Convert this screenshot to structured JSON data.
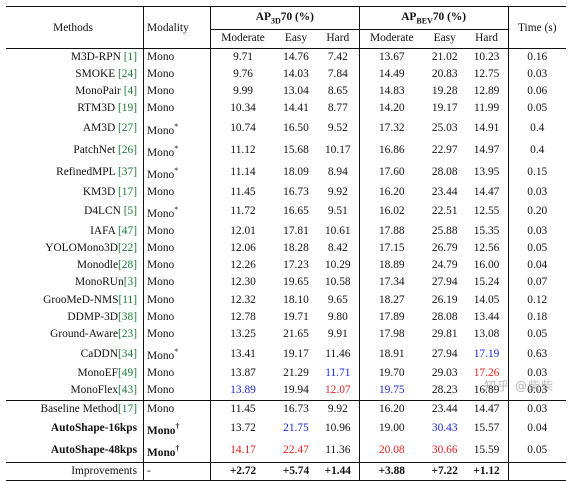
{
  "headers": {
    "methods": "Methods",
    "modality": "Modality",
    "ap3d": "AP",
    "ap3d_sub": "3D",
    "ap3d_rest": "70 (%)",
    "apbev": "AP",
    "apbev_sub": "BEV",
    "apbev_rest": "70 (%)",
    "time": "Time (s)",
    "moderate": "Moderate",
    "easy": "Easy",
    "hard": "Hard"
  },
  "rows": [
    {
      "method": "M3D-RPN ",
      "ref": "[1]",
      "modality": "Mono",
      "mod_sup": "",
      "v": [
        "9.71",
        "14.76",
        "7.42",
        "13.67",
        "21.02",
        "10.23",
        "0.16"
      ]
    },
    {
      "method": "SMOKE ",
      "ref": "[24]",
      "modality": "Mono",
      "mod_sup": "",
      "v": [
        "9.76",
        "14.03",
        "7.84",
        "14.49",
        "20.83",
        "12.75",
        "0.03"
      ]
    },
    {
      "method": "MonoPair ",
      "ref": "[4]",
      "modality": "Mono",
      "mod_sup": "",
      "v": [
        "9.99",
        "13.04",
        "8.65",
        "14.83",
        "19.28",
        "12.89",
        "0.06"
      ]
    },
    {
      "method": "RTM3D ",
      "ref": "[19]",
      "modality": "Mono",
      "mod_sup": "",
      "v": [
        "10.34",
        "14.41",
        "8.77",
        "14.20",
        "19.17",
        "11.99",
        "0.05"
      ]
    },
    {
      "method": "AM3D ",
      "ref": "[27]",
      "modality": "Mono",
      "mod_sup": "*",
      "v": [
        "10.74",
        "16.50",
        "9.52",
        "17.32",
        "25.03",
        "14.91",
        "0.4"
      ]
    },
    {
      "method": "PatchNet ",
      "ref": "[26]",
      "modality": "Mono",
      "mod_sup": "*",
      "v": [
        "11.12",
        "15.68",
        "10.17",
        "16.86",
        "22.97",
        "14.97",
        "0.4"
      ]
    },
    {
      "method": "RefinedMPL ",
      "ref": "[37]",
      "modality": "Mono",
      "mod_sup": "*",
      "v": [
        "11.14",
        "18.09",
        "8.94",
        "17.60",
        "28.08",
        "13.95",
        "0.15"
      ]
    },
    {
      "method": "KM3D ",
      "ref": "[17]",
      "modality": "Mono",
      "mod_sup": "",
      "v": [
        "11.45",
        "16.73",
        "9.92",
        "16.20",
        "23.44",
        "14.47",
        "0.03"
      ]
    },
    {
      "method": "D4LCN ",
      "ref": "[5]",
      "modality": "Mono",
      "mod_sup": "*",
      "v": [
        "11.72",
        "16.65",
        "9.51",
        "16.02",
        "22.51",
        "12.55",
        "0.20"
      ]
    },
    {
      "method": "IAFA ",
      "ref": "[47]",
      "modality": "Mono",
      "mod_sup": "",
      "v": [
        "12.01",
        "17.81",
        "10.61",
        "17.88",
        "25.88",
        "15.35",
        "0.03"
      ]
    },
    {
      "method": "YOLOMono3D",
      "ref": "[22]",
      "modality": "Mono",
      "mod_sup": "",
      "v": [
        "12.06",
        "18.28",
        "8.42",
        "17.15",
        "26.79",
        "12.56",
        "0.05"
      ]
    },
    {
      "method": "Monodle",
      "ref": "[28]",
      "modality": "Mono",
      "mod_sup": "",
      "v": [
        "12.26",
        "17.23",
        "10.29",
        "18.89",
        "24.79",
        "16.00",
        "0.04"
      ]
    },
    {
      "method": "MonoRUn",
      "ref": "[3]",
      "modality": "Mono",
      "mod_sup": "",
      "v": [
        "12.30",
        "19.65",
        "10.58",
        "17.34",
        "27.94",
        "15.24",
        "0.07"
      ]
    },
    {
      "method": "GrooMeD-NMS",
      "ref": "[11]",
      "modality": "Mono",
      "mod_sup": "",
      "v": [
        "12.32",
        "18.10",
        "9.65",
        "18.27",
        "26.19",
        "14.05",
        "0.12"
      ]
    },
    {
      "method": "DDMP-3D",
      "ref": "[38]",
      "modality": "Mono",
      "mod_sup": "",
      "v": [
        "12.78",
        "19.71",
        "9.80",
        "17.89",
        "28.08",
        "13.44",
        "0.18"
      ]
    },
    {
      "method": "Ground-Aware",
      "ref": "[23]",
      "modality": "Mono",
      "mod_sup": "",
      "v": [
        "13.25",
        "21.65",
        "9.91",
        "17.98",
        "29.81",
        "13.08",
        "0.05"
      ]
    },
    {
      "method": "CaDDN",
      "ref": "[34]",
      "modality": "Mono",
      "mod_sup": "*",
      "v": [
        "13.41",
        "19.17",
        "11.46",
        "18.91",
        "27.94",
        "17.19",
        "0.63"
      ],
      "colors": [
        "",
        "",
        "",
        "",
        "",
        "blue",
        ""
      ]
    },
    {
      "method": "MonoEF",
      "ref": "[49]",
      "modality": "Mono",
      "mod_sup": "",
      "v": [
        "13.87",
        "21.29",
        "11.71",
        "19.70",
        "29.03",
        "17.26",
        "0.03"
      ],
      "colors": [
        "",
        "",
        "blue",
        "",
        "",
        "red",
        ""
      ]
    },
    {
      "method": "MonoFlex",
      "ref": "[43]",
      "modality": "Mono",
      "mod_sup": "",
      "v": [
        "13.89",
        "19.94",
        "12.07",
        "19.75",
        "28.23",
        "16.89",
        "0.03"
      ],
      "colors": [
        "blue",
        "",
        "red",
        "blue",
        "",
        "",
        ""
      ]
    }
  ],
  "baseline": {
    "method": "Baseline Method",
    "ref": "[17]",
    "modality": "Mono",
    "mod_sup": "",
    "v": [
      "11.45",
      "16.73",
      "9.92",
      "16.20",
      "23.44",
      "14.47",
      "0.03"
    ]
  },
  "ours": [
    {
      "method": "AutoShape-16kps",
      "modality": "Mono",
      "mod_sup": "†",
      "v": [
        "13.72",
        "21.75",
        "10.96",
        "19.00",
        "30.43",
        "15.57",
        "0.04"
      ],
      "colors": [
        "",
        "blue",
        "",
        "",
        "blue",
        "",
        ""
      ]
    },
    {
      "method": "AutoShape-48kps",
      "modality": "Mono",
      "mod_sup": "†",
      "v": [
        "14.17",
        "22.47",
        "11.36",
        "20.08",
        "30.66",
        "15.59",
        "0.05"
      ],
      "colors": [
        "red",
        "red",
        "",
        "red",
        "red",
        "",
        ""
      ]
    }
  ],
  "improvements": {
    "label": "Improvements",
    "modality": "-",
    "v": [
      "+2.72",
      "+5.74",
      "+1.44",
      "+3.88",
      "+7.22",
      "+1.12",
      ""
    ]
  },
  "watermark": "知乎 @柴柴",
  "colors": {
    "red": "#e02020",
    "blue": "#1a2ad6",
    "ref_green": "#1f7a3a"
  }
}
